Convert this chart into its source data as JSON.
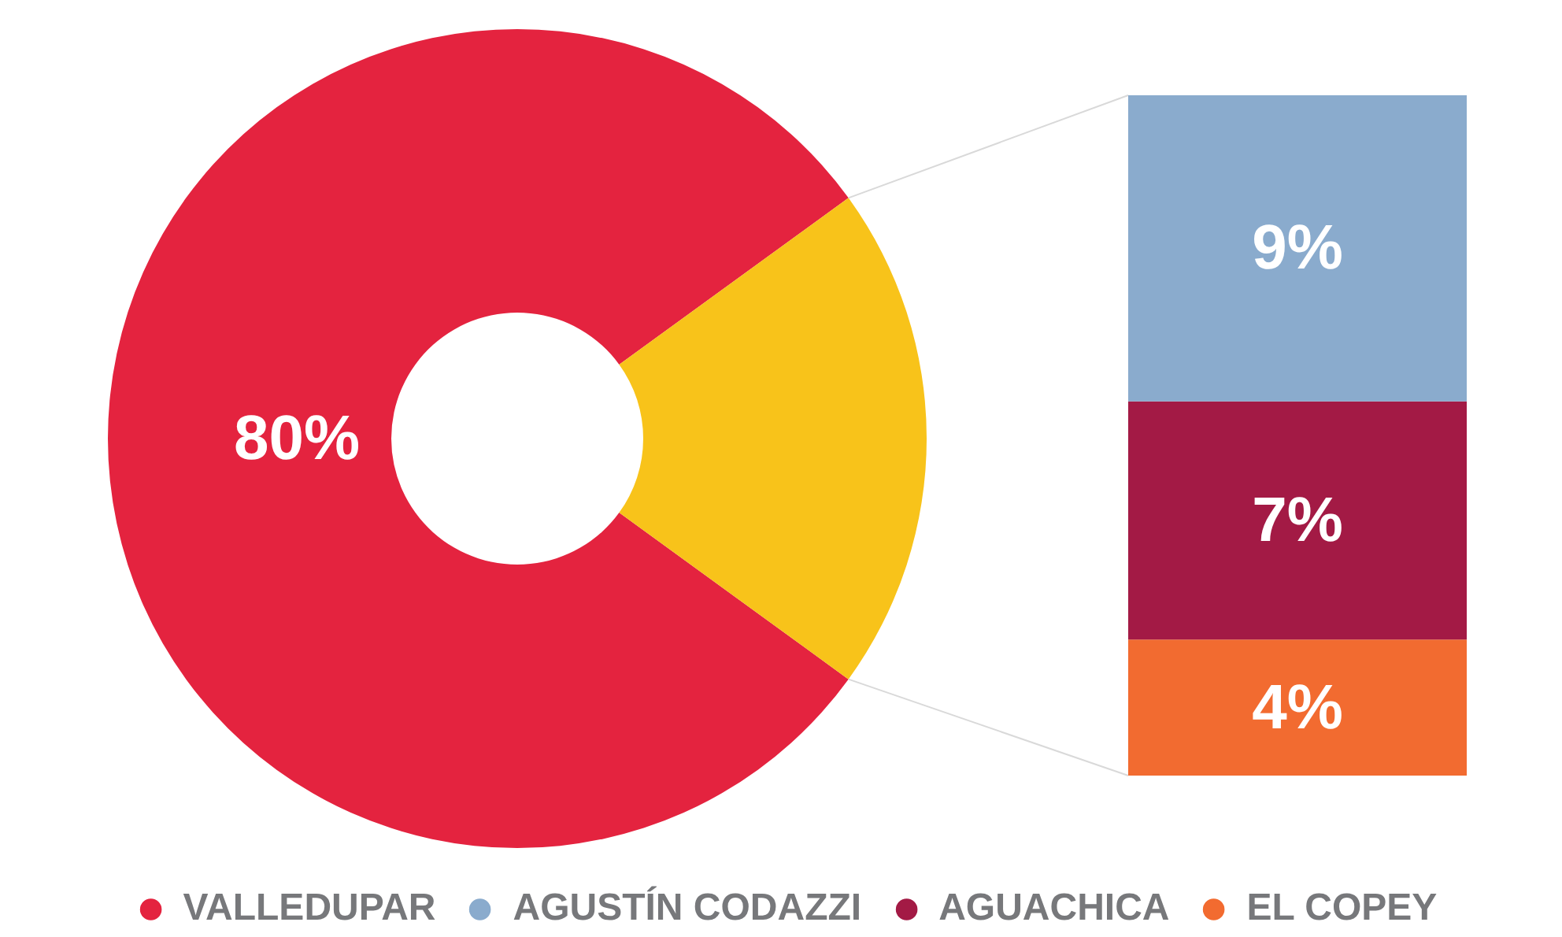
{
  "chart_data": [
    {
      "type": "donut",
      "categories": [
        "VALLEDUPAR",
        null
      ],
      "values": [
        80,
        20
      ],
      "colors": [
        "#e4233f",
        "#f8c31a"
      ],
      "value_labels": [
        "80%",
        null
      ],
      "legend": "bottom"
    },
    {
      "type": "bar",
      "stacked": true,
      "categories": [
        null
      ],
      "series": [
        {
          "name": "EL COPEY",
          "color": "#f26b30",
          "values": [
            4
          ],
          "value_labels": [
            "4%"
          ]
        },
        {
          "name": "AGUACHICA",
          "color": "#a31a45",
          "values": [
            7
          ],
          "value_labels": [
            "7%"
          ]
        },
        {
          "name": "AGUSTÍN CODAZZI",
          "color": "#8aabcd",
          "values": [
            9
          ],
          "value_labels": [
            "9%"
          ]
        }
      ],
      "legend": "bottom"
    }
  ]
}
